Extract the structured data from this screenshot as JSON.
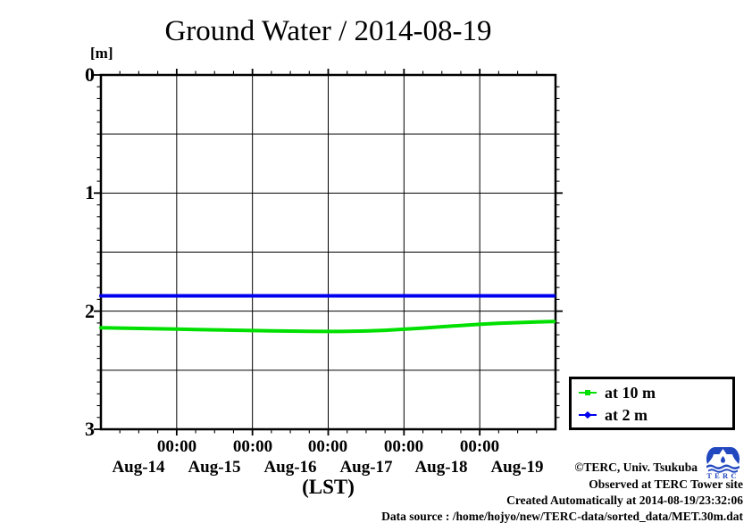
{
  "title": "Ground Water / 2014-08-19",
  "axes": {
    "y": {
      "unit_label": "[m]",
      "tick_labels": [
        "0",
        "1",
        "2",
        "3"
      ]
    },
    "x": {
      "time_tick_labels": [
        "00:00",
        "00:00",
        "00:00",
        "00:00",
        "00:00"
      ],
      "day_labels": [
        "Aug-14",
        "Aug-15",
        "Aug-16",
        "Aug-17",
        "Aug-18",
        "Aug-19"
      ],
      "axis_label": "(LST)"
    }
  },
  "legend": {
    "items": [
      {
        "label": "at 10 m",
        "color": "#00e000",
        "marker": "square"
      },
      {
        "label": "at 2 m",
        "color": "#0000ee",
        "marker": "diamond"
      }
    ]
  },
  "footer": {
    "copyright": "©TERC, Univ. Tsukuba",
    "observed": "Observed at TERC Tower site",
    "created": "Created Automatically at 2014-08-19/23:32:06",
    "source": "Data source : /home/hojyo/new/TERC-data/sorted_data/MET.30m.dat",
    "logo_text": "TERC",
    "logo_color": "#2248c0"
  },
  "chart_data": {
    "type": "line",
    "title": "Ground Water / 2014-08-19",
    "xlabel": "(LST)",
    "ylabel": "[m]",
    "x_axis": "hours since 2014-08-14 00:00 LST",
    "xlim": [
      0,
      144
    ],
    "ylim": [
      0,
      3
    ],
    "y_inverted_depth": true,
    "grid": true,
    "x_gridlines_hours": [
      24,
      48,
      72,
      96,
      120
    ],
    "y_gridlines_m": [
      0.5,
      1.0,
      1.5,
      2.0,
      2.5
    ],
    "x_minor_tick_hours": 6,
    "y_minor_tick_m": 0.1,
    "legend_position": "outside-right-bottom",
    "series": [
      {
        "name": "at 10 m",
        "color": "#00e000",
        "x": [
          0,
          6,
          12,
          18,
          24,
          30,
          36,
          42,
          48,
          54,
          60,
          66,
          72,
          78,
          84,
          90,
          96,
          102,
          108,
          114,
          120,
          126,
          132,
          138,
          143.5
        ],
        "y": [
          2.14,
          2.143,
          2.146,
          2.149,
          2.152,
          2.155,
          2.158,
          2.161,
          2.164,
          2.167,
          2.169,
          2.171,
          2.172,
          2.171,
          2.168,
          2.162,
          2.153,
          2.143,
          2.132,
          2.121,
          2.111,
          2.103,
          2.097,
          2.092,
          2.088
        ]
      },
      {
        "name": "at 2 m",
        "color": "#0000ee",
        "x": [
          0,
          24,
          48,
          72,
          96,
          120,
          143.5
        ],
        "y": [
          1.87,
          1.87,
          1.87,
          1.87,
          1.87,
          1.87,
          1.87
        ]
      }
    ]
  }
}
